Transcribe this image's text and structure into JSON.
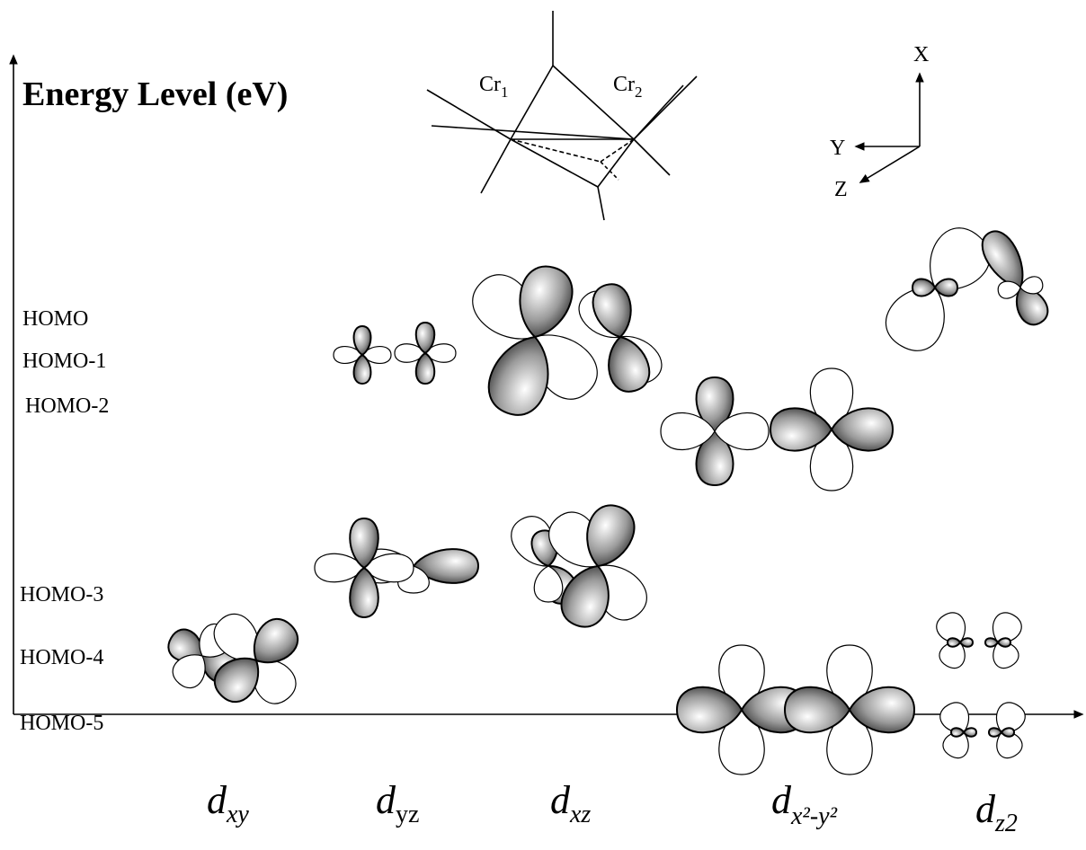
{
  "title": "Energy Level (eV)",
  "levels": [
    "HOMO",
    "HOMO-1",
    "HOMO-2",
    "HOMO-3",
    "HOMO-4",
    "HOMO-5"
  ],
  "orbitals": [
    {
      "base": "d",
      "sub": "xy"
    },
    {
      "base": "d",
      "sub": "yz"
    },
    {
      "base": "d",
      "sub": "xz"
    },
    {
      "base": "d",
      "sub": "x²-y²"
    },
    {
      "base": "d",
      "sub": "z2"
    }
  ],
  "molecule": {
    "atoms": [
      {
        "base": "Cr",
        "sub": "1"
      },
      {
        "base": "Cr",
        "sub": "2"
      }
    ]
  },
  "axes": {
    "x": "X",
    "y": "Y",
    "z": "Z"
  }
}
